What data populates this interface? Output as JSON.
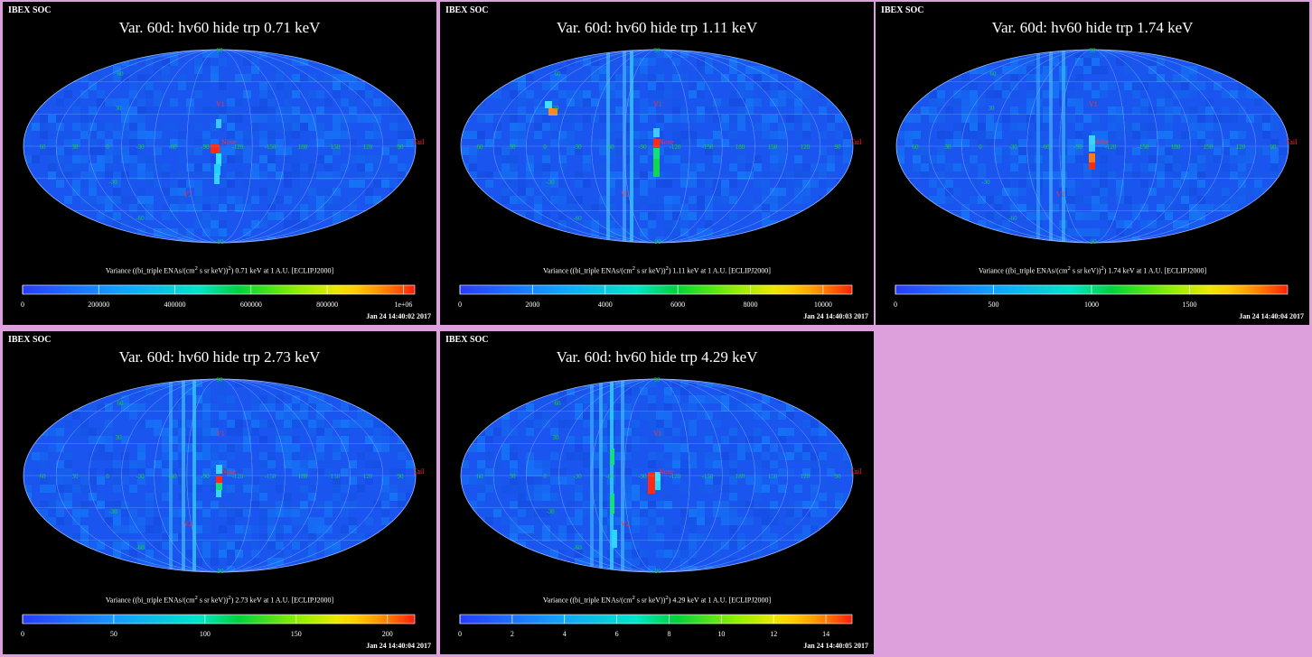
{
  "background_color": "#dda0dd",
  "brand": "IBEX SOC",
  "grid_labels": {
    "lat": [
      "60",
      "30",
      "0",
      "-30",
      "-60",
      "-90",
      "90"
    ],
    "lon": [
      "60",
      "30",
      "0",
      "-30",
      "-60",
      "-90",
      "-120",
      "-150",
      "180",
      "150",
      "120",
      "90"
    ]
  },
  "markers": {
    "v1": "V1",
    "v2": "V2",
    "nose": "Nose",
    "tail": "Tail"
  },
  "panels": [
    {
      "title": "Var. 60d: hv60 hide trp 0.71 keV",
      "colorbar_label_pre": "Variance ((bi_triple ENAs/(cm",
      "colorbar_label_sup": "2",
      "colorbar_label_post": " s sr keV))",
      "colorbar_label_sup2": "2",
      "colorbar_label_end": ") 0.71 keV at 1 A.U. [ECLIPJ2000]",
      "ticks": [
        "0",
        "200000",
        "400000",
        "600000",
        "800000",
        "1e+06"
      ],
      "tick_values": [
        0,
        200000,
        400000,
        600000,
        800000,
        1000000
      ],
      "range": [
        0,
        1030000
      ],
      "timestamp": "Jan 24 14:40:02 2017"
    },
    {
      "title": "Var. 60d: hv60 hide trp 1.11 keV",
      "colorbar_label_pre": "Variance ((bi_triple ENAs/(cm",
      "colorbar_label_sup": "2",
      "colorbar_label_post": " s sr keV))",
      "colorbar_label_sup2": "2",
      "colorbar_label_end": ") 1.11 keV at 1 A.U. [ECLIPJ2000]",
      "ticks": [
        "0",
        "2000",
        "4000",
        "6000",
        "8000",
        "10000"
      ],
      "tick_values": [
        0,
        2000,
        4000,
        6000,
        8000,
        10000
      ],
      "range": [
        0,
        10800
      ],
      "timestamp": "Jan 24 14:40:03 2017"
    },
    {
      "title": "Var. 60d: hv60 hide trp 1.74 keV",
      "colorbar_label_pre": "Variance ((bi_triple ENAs/(cm",
      "colorbar_label_sup": "2",
      "colorbar_label_post": " s sr keV))",
      "colorbar_label_sup2": "2",
      "colorbar_label_end": ") 1.74 keV at 1 A.U. [ECLIPJ2000]",
      "ticks": [
        "0",
        "500",
        "1000",
        "1500"
      ],
      "tick_values": [
        0,
        500,
        1000,
        1500
      ],
      "range": [
        0,
        2000
      ],
      "timestamp": "Jan 24 14:40:04 2017"
    },
    {
      "title": "Var. 60d: hv60 hide trp 2.73 keV",
      "colorbar_label_pre": "Variance ((bi_triple ENAs/(cm",
      "colorbar_label_sup": "2",
      "colorbar_label_post": " s sr keV))",
      "colorbar_label_sup2": "2",
      "colorbar_label_end": ") 2.73 keV at 1 A.U. [ECLIPJ2000]",
      "ticks": [
        "0",
        "50",
        "100",
        "150",
        "200"
      ],
      "tick_values": [
        0,
        50,
        100,
        150,
        200
      ],
      "range": [
        0,
        215
      ],
      "timestamp": "Jan 24 14:40:04 2017"
    },
    {
      "title": "Var. 60d: hv60 hide trp 4.29 keV",
      "colorbar_label_pre": "Variance ((bi_triple ENAs/(cm",
      "colorbar_label_sup": "2",
      "colorbar_label_post": " s sr keV))",
      "colorbar_label_sup2": "2",
      "colorbar_label_end": ") 4.29 keV at 1 A.U. [ECLIPJ2000]",
      "ticks": [
        "0",
        "2",
        "4",
        "6",
        "8",
        "10",
        "12",
        "14"
      ],
      "tick_values": [
        0,
        2,
        4,
        6,
        8,
        10,
        12,
        14
      ],
      "range": [
        0,
        15
      ],
      "timestamp": "Jan 24 14:40:05 2017"
    }
  ]
}
